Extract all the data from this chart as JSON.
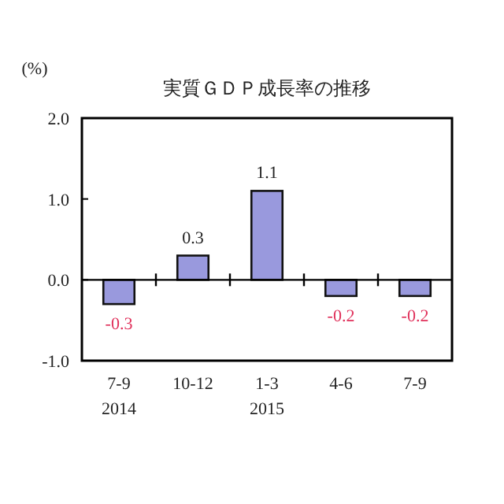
{
  "chart_data": {
    "type": "bar",
    "title": "実質ＧＤＰ成長率の推移",
    "ylabel": "(%)",
    "categories": [
      "7-9\n2014",
      "10-12",
      "1-3\n2015",
      "4-6",
      "7-9"
    ],
    "values": [
      -0.3,
      0.3,
      1.1,
      -0.2,
      -0.2
    ],
    "color": "#9999dd",
    "ylim": [
      -1.0,
      2.0
    ],
    "yticks": [
      {
        "value": 2.0,
        "label": "2.0"
      },
      {
        "value": 1.0,
        "label": "1.0"
      },
      {
        "value": 0.0,
        "label": "0.0"
      },
      {
        "value": -1.0,
        "label": "-1.0"
      }
    ],
    "data_labels": true
  }
}
